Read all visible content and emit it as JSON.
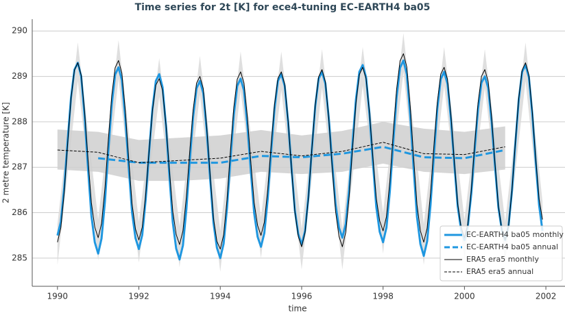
{
  "chart_data": {
    "type": "line",
    "title": "Time series for 2t [K] for ece4-tuning EC-EARTH4 ba05",
    "xlabel": "time",
    "ylabel": "2 metre temperature [K]",
    "xlim": [
      1989.38,
      2002.47
    ],
    "xticks": [
      1990,
      1992,
      1994,
      1996,
      1998,
      2000,
      2002
    ],
    "ylim": [
      284.38,
      290.26
    ],
    "yticks": [
      285,
      286,
      287,
      288,
      289,
      290
    ],
    "grid": true,
    "legend": "lower right",
    "x": [
      1990,
      1990.083,
      1990.167,
      1990.25,
      1990.333,
      1990.417,
      1990.5,
      1990.583,
      1990.667,
      1990.75,
      1990.833,
      1990.917,
      1991,
      1991.083,
      1991.167,
      1991.25,
      1991.333,
      1991.417,
      1991.5,
      1991.583,
      1991.667,
      1991.75,
      1991.833,
      1991.917,
      1992,
      1992.083,
      1992.167,
      1992.25,
      1992.333,
      1992.417,
      1992.5,
      1992.583,
      1992.667,
      1992.75,
      1992.833,
      1992.917,
      1993,
      1993.083,
      1993.167,
      1993.25,
      1993.333,
      1993.417,
      1993.5,
      1993.583,
      1993.667,
      1993.75,
      1993.833,
      1993.917,
      1994,
      1994.083,
      1994.167,
      1994.25,
      1994.333,
      1994.417,
      1994.5,
      1994.583,
      1994.667,
      1994.75,
      1994.833,
      1994.917,
      1995,
      1995.083,
      1995.167,
      1995.25,
      1995.333,
      1995.417,
      1995.5,
      1995.583,
      1995.667,
      1995.75,
      1995.833,
      1995.917,
      1996,
      1996.083,
      1996.167,
      1996.25,
      1996.333,
      1996.417,
      1996.5,
      1996.583,
      1996.667,
      1996.75,
      1996.833,
      1996.917,
      1997,
      1997.083,
      1997.167,
      1997.25,
      1997.333,
      1997.417,
      1997.5,
      1997.583,
      1997.667,
      1997.75,
      1997.833,
      1997.917,
      1998,
      1998.083,
      1998.167,
      1998.25,
      1998.333,
      1998.417,
      1998.5,
      1998.583,
      1998.667,
      1998.75,
      1998.833,
      1998.917,
      1999,
      1999.083,
      1999.167,
      1999.25,
      1999.333,
      1999.417,
      1999.5,
      1999.583,
      1999.667,
      1999.75,
      1999.833,
      1999.917,
      2000,
      2000.083,
      2000.167,
      2000.25,
      2000.333,
      2000.417,
      2000.5,
      2000.583,
      2000.667,
      2000.75,
      2000.833,
      2000.917,
      2001,
      2001.083,
      2001.167,
      2001.25,
      2001.333,
      2001.417,
      2001.5,
      2001.583,
      2001.667,
      2001.75,
      2001.833,
      2001.917
    ],
    "bands": [
      {
        "color": "#d9d9d9",
        "x": [
          1990,
          1990.5,
          1991,
          1991.5,
          1992,
          1992.5,
          1993,
          1993.5,
          1994,
          1994.5,
          1995,
          1995.5,
          1996,
          1996.5,
          1997,
          1997.5,
          1998,
          1998.5,
          1999,
          1999.5,
          2000,
          2000.5,
          2001,
          2001.5,
          2001.917
        ],
        "lower": [
          284.85,
          288.9,
          284.95,
          288.95,
          284.9,
          288.55,
          284.8,
          288.6,
          284.7,
          288.7,
          285.0,
          288.7,
          284.75,
          288.75,
          284.75,
          288.8,
          285.1,
          289.1,
          284.85,
          288.8,
          284.95,
          288.75,
          284.9,
          288.9,
          285.35
        ],
        "upper": [
          285.75,
          289.75,
          285.85,
          289.8,
          285.8,
          289.4,
          285.7,
          289.45,
          285.6,
          289.55,
          285.9,
          289.55,
          285.65,
          289.6,
          285.65,
          289.65,
          286.0,
          289.95,
          285.75,
          289.65,
          285.85,
          289.6,
          285.8,
          289.75,
          286.25
        ]
      },
      {
        "color": "#cfcfcf",
        "x": [
          1990,
          1991,
          1992,
          1993,
          1994,
          1995,
          1996,
          1997,
          1998,
          1999,
          2000,
          2001
        ],
        "lower": [
          286.95,
          286.9,
          286.7,
          286.7,
          286.75,
          286.9,
          286.85,
          286.9,
          287.08,
          286.9,
          286.85,
          286.95
        ],
        "upper": [
          287.83,
          287.78,
          287.6,
          287.65,
          287.7,
          287.82,
          287.7,
          287.8,
          288.0,
          287.85,
          287.78,
          287.9
        ]
      }
    ],
    "series": [
      {
        "name": "EC-EARTH4 ba05 monthly",
        "color": "#1f97e0",
        "width": 3,
        "dash": "solid",
        "values": [
          285.5,
          285.8,
          286.56,
          287.59,
          288.54,
          289.15,
          289.3,
          289.0,
          288.12,
          286.99,
          285.94,
          285.35,
          285.1,
          285.43,
          286.25,
          287.36,
          288.38,
          289.04,
          289.2,
          288.92,
          288.08,
          287.0,
          286.0,
          285.44,
          285.2,
          285.51,
          286.28,
          287.32,
          288.28,
          288.9,
          289.05,
          288.76,
          287.91,
          286.81,
          285.79,
          285.21,
          284.97,
          285.28,
          286.07,
          287.13,
          288.11,
          288.74,
          288.9,
          288.63,
          287.81,
          286.76,
          285.78,
          285.23,
          285.0,
          285.32,
          286.11,
          287.17,
          288.16,
          288.79,
          288.95,
          288.69,
          287.91,
          286.92,
          285.99,
          285.47,
          285.25,
          285.55,
          286.31,
          287.34,
          288.29,
          288.9,
          289.05,
          288.79,
          288.0,
          286.99,
          286.05,
          285.53,
          285.3,
          285.6,
          286.36,
          287.39,
          288.34,
          288.95,
          289.1,
          288.84,
          288.08,
          287.09,
          286.18,
          285.67,
          285.45,
          285.75,
          286.51,
          287.54,
          288.49,
          289.1,
          289.25,
          288.98,
          288.16,
          287.11,
          286.13,
          285.58,
          285.35,
          285.67,
          286.47,
          287.55,
          288.55,
          289.19,
          289.35,
          289.05,
          288.15,
          286.99,
          285.91,
          285.31,
          285.05,
          285.37,
          286.18,
          287.28,
          288.29,
          288.94,
          289.1,
          288.84,
          288.06,
          287.07,
          286.14,
          285.62,
          285.4,
          285.69,
          286.41,
          287.38,
          288.28,
          288.86,
          289.0,
          288.75,
          288.0,
          287.02,
          286.12,
          285.62,
          285.4,
          285.71,
          286.48,
          287.52,
          288.48,
          289.1,
          289.25,
          288.98,
          288.17,
          287.13,
          286.17,
          285.6
        ]
      },
      {
        "name": "EC-EARTH4 ba05 annual",
        "color": "#1f97e0",
        "width": 3,
        "dash": "dashed",
        "x": [
          1991,
          1992,
          1993,
          1994,
          1995,
          1996,
          1997,
          1998,
          1999,
          2000,
          2001
        ],
        "values": [
          287.2,
          287.1,
          287.1,
          287.1,
          287.25,
          287.22,
          287.3,
          287.45,
          287.22,
          287.2,
          287.38
        ]
      },
      {
        "name": "ERA5 era5 monthly",
        "color": "#000000",
        "width": 1,
        "dash": "solid",
        "values": [
          285.35,
          285.67,
          286.46,
          287.52,
          288.51,
          289.14,
          289.3,
          289.03,
          288.22,
          287.18,
          286.22,
          285.68,
          285.45,
          285.76,
          286.54,
          287.6,
          288.57,
          289.19,
          289.35,
          289.07,
          288.24,
          287.18,
          286.19,
          285.64,
          285.4,
          285.68,
          286.39,
          287.35,
          288.24,
          288.81,
          288.95,
          288.69,
          287.93,
          286.94,
          286.03,
          285.52,
          285.3,
          285.6,
          286.34,
          287.34,
          288.26,
          288.85,
          289.0,
          288.73,
          287.88,
          286.84,
          285.88,
          285.37,
          285.2,
          285.51,
          286.29,
          287.35,
          288.32,
          288.94,
          289.1,
          288.85,
          288.09,
          287.12,
          286.22,
          285.72,
          285.5,
          285.79,
          286.51,
          287.48,
          288.38,
          288.96,
          289.1,
          288.83,
          288.02,
          286.98,
          286.02,
          285.48,
          285.25,
          285.56,
          286.34,
          287.4,
          288.37,
          288.99,
          289.15,
          288.88,
          288.06,
          287.0,
          286.03,
          285.48,
          285.25,
          285.57,
          286.36,
          287.42,
          288.41,
          289.04,
          289.2,
          288.95,
          288.19,
          287.22,
          286.32,
          285.82,
          285.6,
          285.91,
          286.69,
          287.75,
          288.72,
          289.34,
          289.5,
          289.21,
          288.34,
          287.22,
          286.18,
          285.6,
          285.35,
          285.66,
          286.43,
          287.47,
          288.43,
          289.05,
          289.2,
          288.94,
          288.15,
          287.14,
          286.2,
          285.68,
          285.45,
          285.75,
          286.49,
          287.49,
          288.41,
          289.0,
          289.15,
          288.89,
          288.1,
          287.09,
          286.15,
          285.63,
          285.4,
          285.71,
          286.49,
          287.55,
          288.52,
          289.14,
          289.3,
          289.03,
          288.22,
          287.2,
          286.3,
          285.85
        ]
      },
      {
        "name": "ERA5 era5 annual",
        "color": "#000000",
        "width": 1,
        "dash": "dashed",
        "x": [
          1990,
          1991,
          1992,
          1993,
          1994,
          1995,
          1996,
          1997,
          1998,
          1999,
          2000,
          2001
        ],
        "values": [
          287.38,
          287.33,
          287.1,
          287.15,
          287.2,
          287.35,
          287.25,
          287.35,
          287.55,
          287.3,
          287.28,
          287.45
        ]
      }
    ]
  }
}
